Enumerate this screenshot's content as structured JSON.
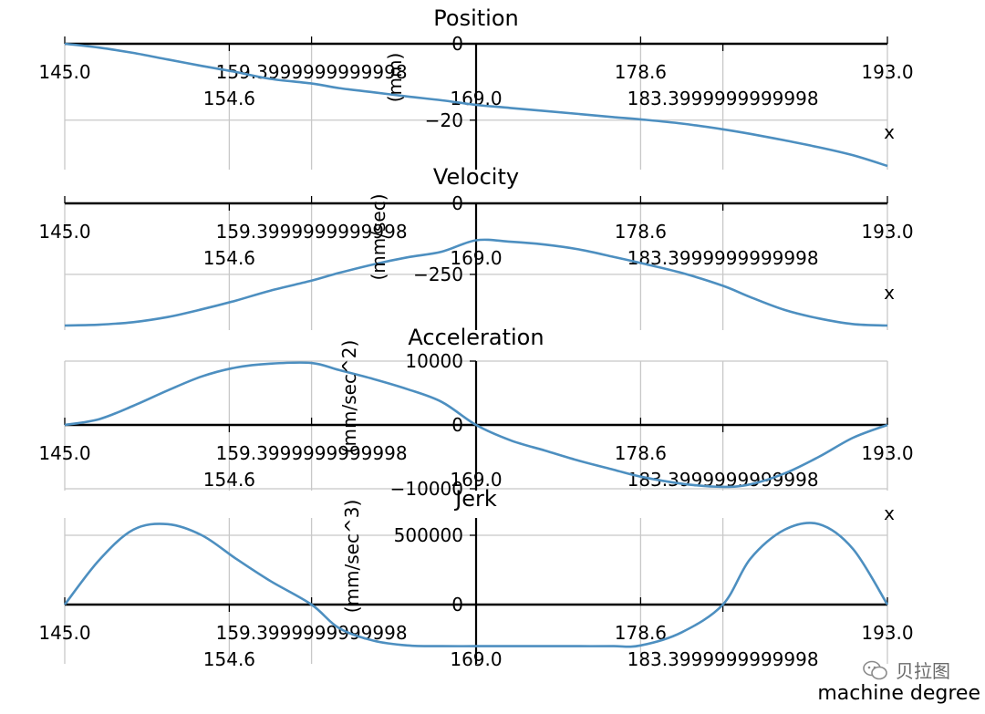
{
  "figure": {
    "xlabel": "machine degree",
    "watermark": "贝拉图"
  },
  "chart_data": [
    {
      "type": "line",
      "title": "Position",
      "ylabel": "(mm)",
      "xaxis_label": "x",
      "xlim": [
        145.0,
        193.0
      ],
      "ylim": [
        -32,
        0
      ],
      "yticks": [
        0,
        -20
      ],
      "ytick_labels": [
        "0",
        "−20"
      ],
      "x": [
        145,
        147,
        149,
        151,
        153,
        155,
        157,
        159.4,
        161,
        163,
        165,
        167,
        169,
        171,
        173,
        175,
        177,
        178.6,
        181,
        183.4,
        185,
        187,
        189,
        191,
        193
      ],
      "series": [
        {
          "values": [
            0,
            -1.0,
            -2.4,
            -4.1,
            -5.8,
            -7.4,
            -9.2,
            -10.4,
            -11.6,
            -12.7,
            -13.8,
            -14.8,
            -16.0,
            -16.8,
            -17.6,
            -18.4,
            -19.2,
            -19.8,
            -20.9,
            -22.4,
            -23.6,
            -25.3,
            -27.1,
            -29.2,
            -32.0
          ]
        }
      ]
    },
    {
      "type": "line",
      "title": "Velocity",
      "ylabel": "(mm/sec)",
      "xaxis_label": "x",
      "xlim": [
        145.0,
        193.0
      ],
      "ylim": [
        -430,
        0
      ],
      "yticks": [
        0,
        -250
      ],
      "ytick_labels": [
        "0",
        "−250"
      ],
      "x": [
        145,
        147,
        149,
        151,
        153,
        155,
        157,
        159.4,
        161,
        163,
        165,
        167,
        169,
        171,
        173,
        175,
        177,
        178.6,
        181,
        183.4,
        185,
        187,
        189,
        191,
        193
      ],
      "series": [
        {
          "values": [
            -430,
            -427,
            -418,
            -400,
            -373,
            -342,
            -307,
            -272,
            -245,
            -215,
            -190,
            -170,
            -130,
            -135,
            -145,
            -162,
            -188,
            -210,
            -245,
            -290,
            -330,
            -375,
            -405,
            -425,
            -430
          ]
        }
      ]
    },
    {
      "type": "line",
      "title": "Acceleration",
      "ylabel": "(mm/sec^2)",
      "xaxis_label": "x",
      "xlim": [
        145.0,
        193.0
      ],
      "ylim": [
        -10000,
        10000
      ],
      "yticks": [
        10000,
        0,
        -10000
      ],
      "ytick_labels": [
        "10000",
        "0",
        "−10000"
      ],
      "x": [
        145,
        147,
        149,
        151,
        153,
        155,
        157,
        159.4,
        161,
        163,
        165,
        167,
        169,
        171,
        173,
        175,
        177,
        178.6,
        181,
        183.4,
        185,
        187,
        189,
        191,
        193
      ],
      "series": [
        {
          "values": [
            0,
            900,
            3000,
            5400,
            7600,
            9000,
            9600,
            9700,
            8600,
            7200,
            5600,
            3600,
            0,
            -2400,
            -4000,
            -5600,
            -7000,
            -8100,
            -9200,
            -9700,
            -9300,
            -7600,
            -5000,
            -2000,
            0
          ]
        }
      ]
    },
    {
      "type": "line",
      "title": "Jerk",
      "ylabel": "(mm/sec^3)",
      "xaxis_label": "x",
      "xlim": [
        145.0,
        193.0
      ],
      "ylim": [
        -300000,
        600000
      ],
      "yticks": [
        500000,
        0
      ],
      "ytick_labels": [
        "500000",
        "0"
      ],
      "x": [
        145,
        147,
        149,
        151,
        153,
        155,
        157,
        159.4,
        161,
        163,
        165,
        167,
        169,
        171,
        173,
        175,
        177,
        178.6,
        181,
        183.4,
        185,
        187,
        189,
        191,
        193
      ],
      "series": [
        {
          "values": [
            0,
            320000,
            540000,
            580000,
            500000,
            330000,
            170000,
            0,
            -170000,
            -260000,
            -295000,
            -300000,
            -300000,
            -300000,
            -300000,
            -300000,
            -300000,
            -295000,
            -200000,
            0,
            330000,
            540000,
            580000,
            400000,
            0
          ]
        }
      ]
    }
  ],
  "shared_xticks": {
    "row1_values": [
      145.0,
      159.4,
      178.6,
      193.0
    ],
    "row1_labels": [
      "145.0",
      "159.3999999999998",
      "178.6",
      "193.0"
    ],
    "row2_values": [
      154.6,
      169.0,
      183.4
    ],
    "row2_labels": [
      "154.6",
      "169.0",
      "183.3999999999998"
    ]
  }
}
